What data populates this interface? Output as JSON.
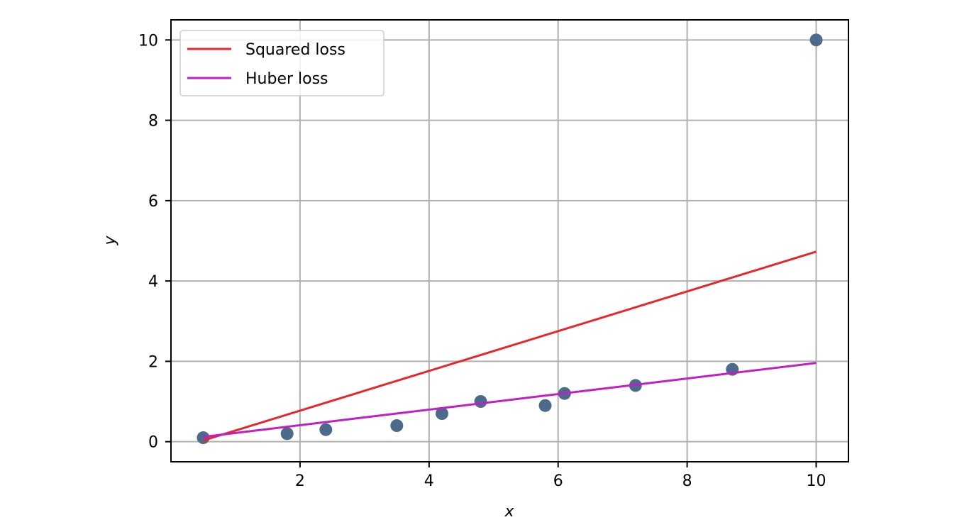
{
  "chart_data": {
    "type": "scatter",
    "xlabel": "x",
    "ylabel": "y",
    "xlim": [
      0,
      10.5
    ],
    "ylim": [
      -0.5,
      10.5
    ],
    "xticks": [
      2,
      4,
      6,
      8,
      10
    ],
    "yticks": [
      0,
      2,
      4,
      6,
      8,
      10
    ],
    "grid": true,
    "legend_position": "top-left",
    "points": {
      "color": "#4c6a8a",
      "x": [
        0.5,
        1.8,
        2.4,
        3.5,
        4.2,
        4.8,
        5.8,
        6.1,
        7.2,
        8.7,
        10.0
      ],
      "y": [
        0.1,
        0.2,
        0.3,
        0.4,
        0.7,
        1.0,
        0.9,
        1.2,
        1.4,
        1.8,
        10.0
      ]
    },
    "series": [
      {
        "name": "Squared loss",
        "type": "line",
        "color": "#e8262b",
        "x": [
          0.5,
          10.0
        ],
        "y": [
          0.03,
          4.73
        ]
      },
      {
        "name": "Huber loss",
        "type": "line",
        "color": "#bf1fc4",
        "x": [
          0.5,
          10.0
        ],
        "y": [
          0.12,
          1.96
        ]
      }
    ]
  }
}
